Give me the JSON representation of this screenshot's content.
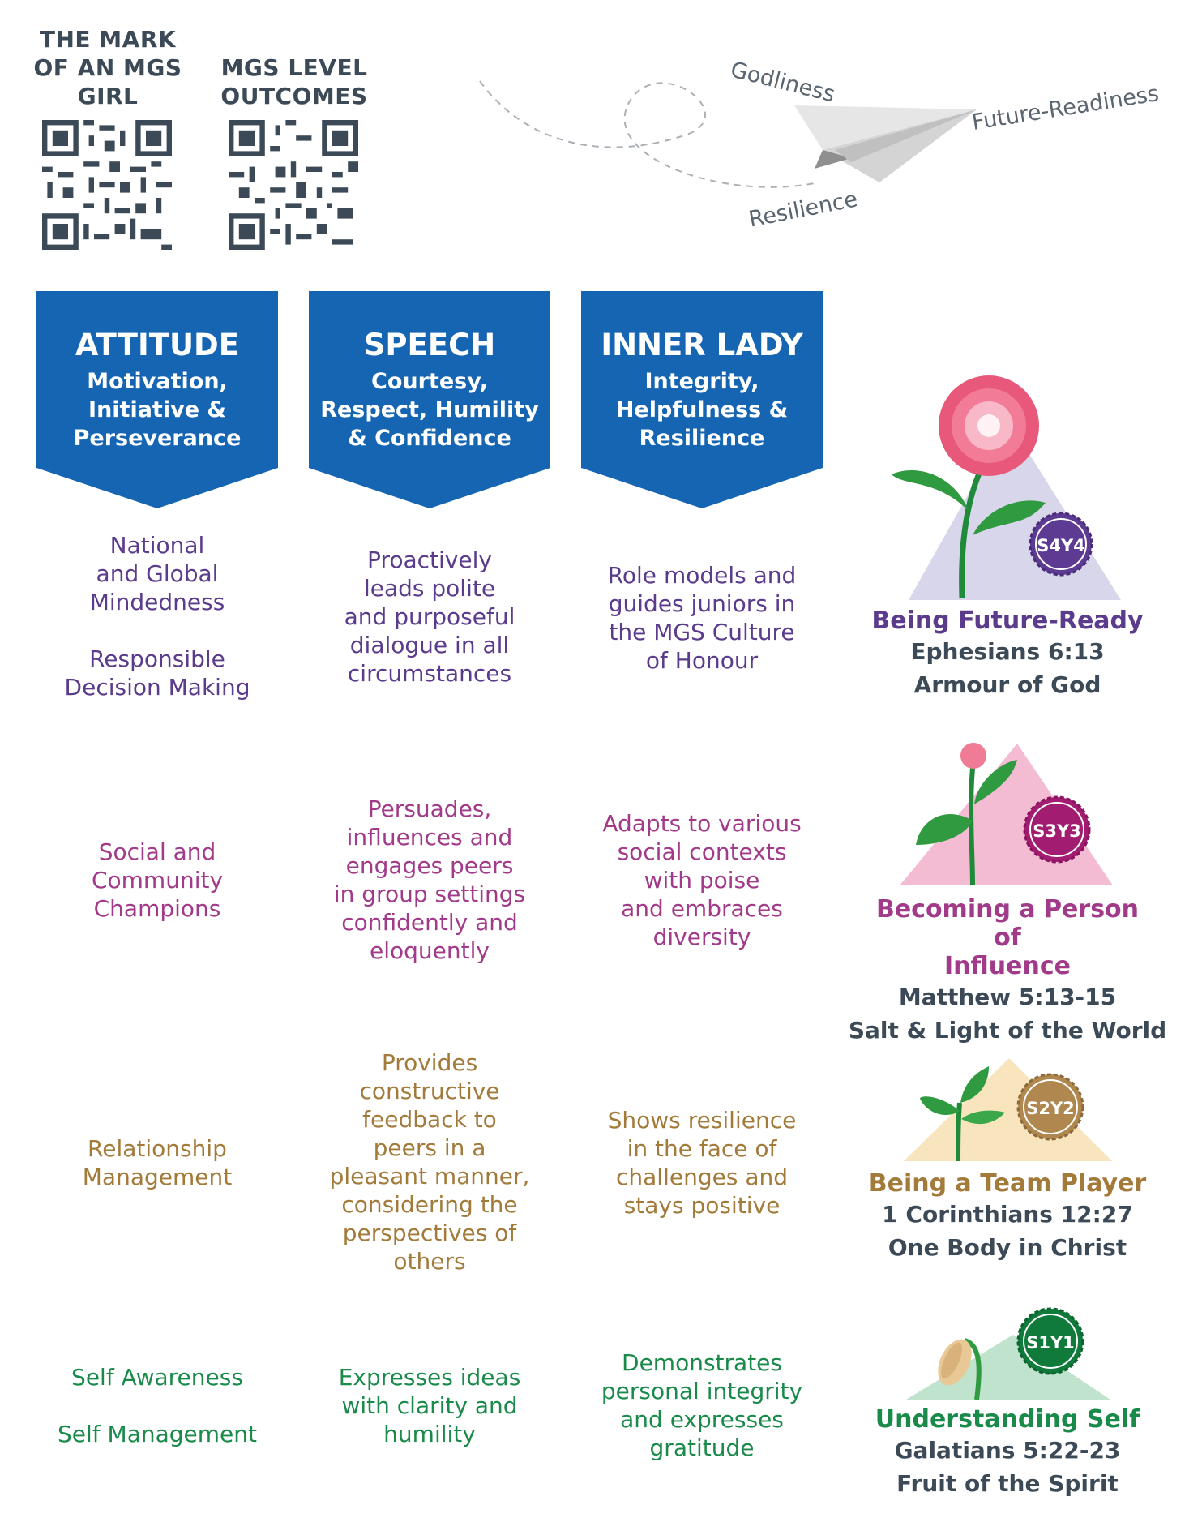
{
  "qr": [
    {
      "title": "THE MARK\nOF AN MGS\nGIRL"
    },
    {
      "title": "MGS LEVEL\nOUTCOMES"
    }
  ],
  "plane": {
    "godliness": "Godliness",
    "future": "Future-Readiness",
    "resilience": "Resilience"
  },
  "banners": [
    {
      "title": "ATTITUDE",
      "sub": "Motivation,\nInitiative &\nPerseverance"
    },
    {
      "title": "SPEECH",
      "sub": "Courtesy,\nRespect, Humility\n& Confidence"
    },
    {
      "title": "INNER LADY",
      "sub": "Integrity,\nHelpfulness &\nResilience"
    }
  ],
  "rows": [
    {
      "attitude": "National\nand Global\nMindedness\n\nResponsible\nDecision Making",
      "speech": "Proactively\nleads polite\nand purposeful\ndialogue in all\ncircumstances",
      "inner": "Role models and\nguides juniors in\nthe MGS Culture\nof Honour",
      "badge": "S4Y4",
      "stage_title": "Being Future-Ready",
      "ref1": "Ephesians 6:13",
      "ref2": "Armour of God"
    },
    {
      "attitude": "Social and\nCommunity\nChampions",
      "speech": "Persuades,\ninfluences and\nengages peers\nin group settings\nconfidently and\neloquently",
      "inner": "Adapts to various\nsocial contexts\nwith poise\nand embraces\ndiversity",
      "badge": "S3Y3",
      "stage_title": "Becoming a Person of\nInfluence",
      "ref1": "Matthew 5:13-15",
      "ref2": "Salt & Light of the World"
    },
    {
      "attitude": "Relationship\nManagement",
      "speech": "Provides\nconstructive\nfeedback to\npeers in a\npleasant manner,\nconsidering the\nperspectives of\nothers",
      "inner": "Shows resilience\nin the face of\nchallenges and\nstays positive",
      "badge": "S2Y2",
      "stage_title": "Being a Team Player",
      "ref1": "1 Corinthians 12:27",
      "ref2": "One Body in Christ"
    },
    {
      "attitude": "Self Awareness\n\nSelf Management",
      "speech": "Expresses ideas\nwith clarity and\nhumility",
      "inner": "Demonstrates\npersonal integrity\nand expresses\ngratitude",
      "badge": "S1Y1",
      "stage_title": "Understanding Self",
      "ref1": "Galatians 5:22-23",
      "ref2": "Fruit of the Spirit"
    }
  ],
  "colors": {
    "banner": "#1565b3",
    "row1": "#5b3b8c",
    "row2": "#a23a8a",
    "row3": "#a27a3a",
    "row4": "#1a8a4a"
  }
}
